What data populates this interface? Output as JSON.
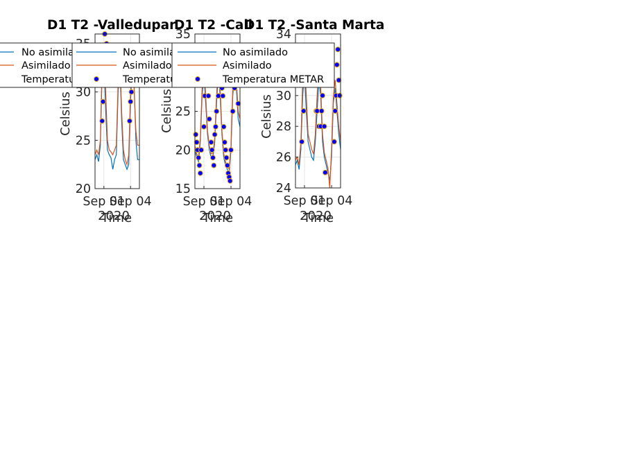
{
  "colors": {
    "no_asimilado": "#0072BD",
    "asimilado": "#D95319",
    "metar_face": "#0000FF",
    "metar_edge": "#EDB120",
    "axis": "#262626",
    "grid": "#DFDFDF"
  },
  "chart_data": [
    {
      "type": "line",
      "title": "D1 T2  -Valledupar",
      "xlabel": "Time",
      "ylabel": "Celsius",
      "xlim": [
        0,
        5
      ],
      "ylim": [
        20,
        36
      ],
      "yticks": [
        20,
        25,
        30,
        35
      ],
      "xticks": [
        {
          "x": 1,
          "label": "Sep 01"
        },
        {
          "x": 4,
          "label": "Sep 04"
        }
      ],
      "date_label": "2020",
      "grid": true,
      "legend_position": "top-left",
      "legend": [
        "No asimilado",
        "Asimilado",
        "Temperatura METAR"
      ],
      "series": [
        {
          "name": "No asimilado",
          "x": [
            0,
            0.2,
            0.4,
            0.6,
            0.8,
            1.0,
            1.2,
            1.4,
            1.6,
            1.8,
            2.0,
            2.2,
            2.4,
            2.6,
            2.8,
            3.0,
            3.2,
            3.4,
            3.6,
            3.8,
            4.0,
            4.2,
            4.4,
            4.6,
            4.8,
            5.0
          ],
          "y": [
            23.0,
            23.5,
            22.8,
            24.5,
            32.0,
            33.5,
            28.0,
            24.0,
            23.5,
            23.2,
            22.0,
            23.0,
            23.5,
            30.0,
            33.0,
            27.0,
            23.0,
            22.5,
            22.0,
            22.5,
            29.0,
            33.0,
            31.0,
            25.0,
            23.0,
            23.0
          ]
        },
        {
          "name": "Asimilado",
          "x": [
            0,
            0.2,
            0.4,
            0.6,
            0.8,
            1.0,
            1.2,
            1.4,
            1.6,
            1.8,
            2.0,
            2.2,
            2.4,
            2.6,
            2.8,
            3.0,
            3.2,
            3.4,
            3.6,
            3.8,
            4.0,
            4.2,
            4.4,
            4.6,
            4.8,
            5.0
          ],
          "y": [
            23.5,
            24.0,
            23.5,
            25.0,
            33.0,
            35.0,
            30.0,
            25.0,
            24.0,
            23.8,
            23.5,
            24.0,
            24.5,
            31.0,
            34.0,
            28.0,
            24.0,
            23.0,
            22.5,
            23.5,
            30.0,
            33.5,
            30.5,
            26.0,
            24.5,
            24.5
          ]
        },
        {
          "name": "Temperatura METAR",
          "x": [
            0.8,
            0.9,
            1.1,
            1.3,
            1.4,
            3.9,
            4.0,
            4.1,
            4.2
          ],
          "y": [
            27,
            29,
            36,
            35,
            32,
            27,
            29,
            30,
            31
          ]
        }
      ]
    },
    {
      "type": "line",
      "title": "D1 T2  -Cali",
      "xlabel": "Time",
      "ylabel": "Celsius",
      "xlim": [
        0,
        5
      ],
      "ylim": [
        15,
        35
      ],
      "yticks": [
        15,
        20,
        25,
        30,
        35
      ],
      "xticks": [
        {
          "x": 1,
          "label": "Sep 01"
        },
        {
          "x": 4,
          "label": "Sep 04"
        }
      ],
      "date_label": "2020",
      "grid": true,
      "legend_position": "top-left",
      "legend": [
        "No asimilado",
        "Asimilado",
        "Temperatura METAR"
      ],
      "series": [
        {
          "name": "No asimilado",
          "x": [
            0,
            0.2,
            0.4,
            0.6,
            0.8,
            1.0,
            1.2,
            1.4,
            1.6,
            1.8,
            2.0,
            2.2,
            2.4,
            2.6,
            2.8,
            3.0,
            3.2,
            3.4,
            3.6,
            3.8,
            4.0,
            4.2,
            4.4,
            4.6,
            4.8,
            5.0
          ],
          "y": [
            20,
            19,
            18.5,
            21,
            27,
            30,
            26,
            22,
            20,
            19,
            19,
            21,
            26,
            30,
            27,
            22,
            19,
            18,
            17.5,
            17,
            20,
            27,
            30,
            28,
            24,
            23
          ]
        },
        {
          "name": "Asimilado",
          "x": [
            0,
            0.2,
            0.4,
            0.6,
            0.8,
            1.0,
            1.2,
            1.4,
            1.6,
            1.8,
            2.0,
            2.2,
            2.4,
            2.6,
            2.8,
            3.0,
            3.2,
            3.4,
            3.6,
            3.8,
            4.0,
            4.2,
            4.4,
            4.6,
            4.8,
            5.0
          ],
          "y": [
            20.5,
            19.5,
            19,
            21.5,
            28,
            31,
            27,
            22.5,
            20.5,
            19.5,
            19.5,
            21.5,
            27,
            31,
            28,
            22.5,
            19.5,
            18.5,
            18,
            17.5,
            20.5,
            28,
            31,
            29,
            25,
            24
          ]
        },
        {
          "name": "Temperatura METAR",
          "x": [
            0.1,
            0.2,
            0.3,
            0.4,
            0.5,
            0.6,
            0.7,
            1.0,
            1.1,
            1.2,
            1.4,
            1.5,
            1.6,
            1.8,
            1.9,
            2.0,
            2.1,
            2.2,
            2.3,
            2.4,
            2.6,
            2.7,
            3.0,
            3.1,
            3.2,
            3.3,
            3.4,
            3.5,
            3.6,
            3.7,
            3.8,
            3.9,
            4.0,
            4.2,
            4.4,
            4.6,
            4.8
          ],
          "y": [
            22,
            21,
            20,
            19,
            18,
            17,
            20,
            23,
            27,
            30,
            31,
            27,
            24,
            21,
            20,
            19,
            18,
            22,
            23,
            25,
            27,
            30,
            28,
            27,
            23,
            21,
            20,
            19,
            18,
            17,
            16.5,
            16,
            20,
            25,
            28,
            29,
            26
          ]
        }
      ]
    },
    {
      "type": "line",
      "title": "D1 T2  -Santa Marta",
      "xlabel": "Time",
      "ylabel": "Celsius",
      "xlim": [
        0,
        5
      ],
      "ylim": [
        24,
        34
      ],
      "yticks": [
        24,
        26,
        28,
        30,
        32,
        34
      ],
      "xticks": [
        {
          "x": 1,
          "label": "Sep 01"
        },
        {
          "x": 4,
          "label": "Sep 04"
        }
      ],
      "date_label": "2020",
      "grid": true,
      "legend_position": "top-left",
      "legend": [
        "No asimilado",
        "Asimilado",
        "Temperatura METAR"
      ],
      "series": [
        {
          "name": "No asimilado",
          "x": [
            0,
            0.2,
            0.4,
            0.6,
            0.8,
            1.0,
            1.2,
            1.4,
            1.6,
            1.8,
            2.0,
            2.2,
            2.4,
            2.6,
            2.8,
            3.0,
            3.2,
            3.4,
            3.6,
            3.8,
            4.0,
            4.2,
            4.4,
            4.6,
            4.8,
            5.0
          ],
          "y": [
            25.5,
            25.8,
            25.2,
            26.5,
            30,
            31.5,
            29,
            27,
            26.5,
            26,
            25.8,
            27,
            29,
            31,
            30,
            27,
            26,
            25.5,
            25,
            24.5,
            26,
            29.5,
            30.5,
            29,
            27.5,
            26.5
          ]
        },
        {
          "name": "Asimilado",
          "x": [
            0,
            0.2,
            0.4,
            0.6,
            0.8,
            1.0,
            1.2,
            1.4,
            1.6,
            1.8,
            2.0,
            2.2,
            2.4,
            2.6,
            2.8,
            3.0,
            3.2,
            3.4,
            3.6,
            3.8,
            4.0,
            4.2,
            4.4,
            4.6,
            4.8,
            5.0
          ],
          "y": [
            25.8,
            26.0,
            25.5,
            27,
            31,
            32.5,
            30,
            27.5,
            27,
            26.5,
            26.2,
            27.5,
            30,
            32,
            30.5,
            27.5,
            26.3,
            25.8,
            25.3,
            24,
            26.5,
            30,
            31,
            29.5,
            28,
            27
          ]
        },
        {
          "name": "Temperatura METAR",
          "x": [
            0.7,
            0.9,
            2.3,
            2.4,
            2.6,
            2.8,
            2.9,
            3.0,
            3.2,
            3.3,
            4.3,
            4.4,
            4.5,
            4.6,
            4.7,
            4.8,
            4.9
          ],
          "y": [
            27,
            29,
            29,
            29,
            28,
            28,
            29,
            30,
            28,
            25,
            27,
            29,
            30,
            32,
            33,
            31,
            30
          ]
        }
      ]
    }
  ]
}
